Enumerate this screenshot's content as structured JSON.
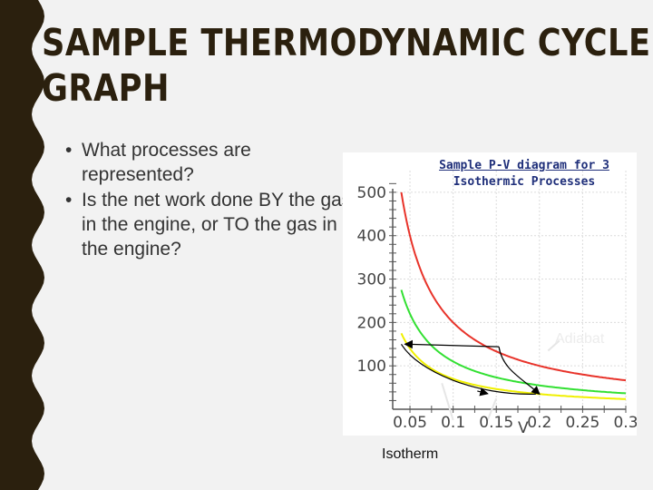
{
  "slide": {
    "title_lines": [
      "SAMPLE THERMODYNAMIC CYCLE",
      "GRAPH"
    ],
    "bullets": [
      "What processes are represented?",
      "Is the net work done BY the gas in the engine, or TO the gas in the engine?"
    ],
    "colors": {
      "edge": "#2b200e",
      "background": "#f2f2f2",
      "title": "#2b200e"
    }
  },
  "chart_data": {
    "type": "line",
    "title": "Sample P-V diagram for 3",
    "subtitle": "Isothermic Processes",
    "xlabel": "V",
    "ylabel": "",
    "xlim": [
      0.03,
      0.3
    ],
    "ylim": [
      0,
      550
    ],
    "x_ticks": [
      "0.05",
      "0.1",
      "0.15",
      "0.2",
      "0.25",
      "0.3"
    ],
    "y_ticks": [
      "100",
      "200",
      "300",
      "400",
      "500"
    ],
    "grid": true,
    "series": [
      {
        "color": "#e8332a",
        "pv_constant": 20,
        "x_start": 0.04,
        "x_end": 0.3
      },
      {
        "color": "#32e032",
        "pv_constant": 11,
        "x_start": 0.04,
        "x_end": 0.3
      },
      {
        "color": "#f0f000",
        "pv_constant": 7,
        "x_start": 0.04,
        "x_end": 0.3
      }
    ],
    "cycle": {
      "color": "#000000",
      "points": [
        {
          "v": 0.04,
          "p": 150
        },
        {
          "v": 0.153,
          "p": 144
        },
        {
          "v": 0.2,
          "p": 35
        }
      ]
    },
    "annotations": {
      "adiabat": "Adiabat",
      "isotherm": "Isotherm"
    }
  }
}
